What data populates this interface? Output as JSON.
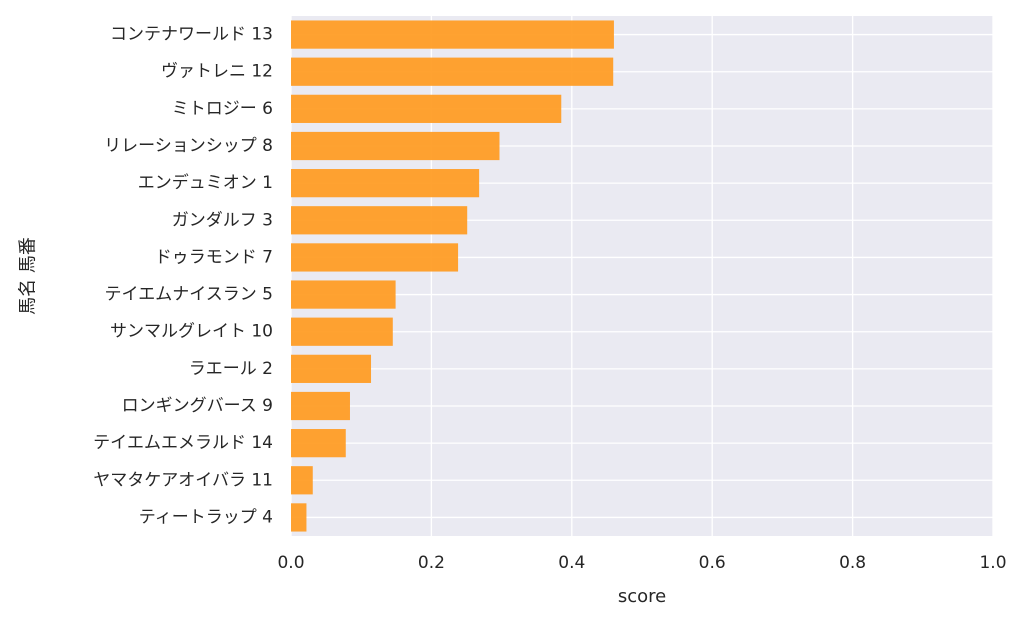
{
  "chart_data": {
    "type": "bar",
    "orientation": "horizontal",
    "xlabel": "score",
    "ylabel": "馬名 馬番",
    "xlim": [
      0.0,
      1.0
    ],
    "xticks": [
      "0.0",
      "0.2",
      "0.4",
      "0.6",
      "0.8",
      "1.0"
    ],
    "grid": true,
    "legend": "none",
    "categories": [
      "コンテナワールド 13",
      "ヴァトレニ 12",
      "ミトロジー 6",
      "リレーションシップ 8",
      "エンデュミオン 1",
      "ガンダルフ 3",
      "ドゥラモンド 7",
      "テイエムナイスラン 5",
      "サンマルグレイト 10",
      "ラエール 2",
      "ロンギングバース 9",
      "テイエムエメラルド 14",
      "ヤマタケアオイバラ 11",
      "ティートラップ 4"
    ],
    "values": [
      0.46,
      0.459,
      0.385,
      0.297,
      0.268,
      0.251,
      0.238,
      0.149,
      0.145,
      0.114,
      0.084,
      0.078,
      0.031,
      0.022
    ],
    "colors": {
      "bar": "#ff9a1f",
      "plot_background": "#eaeaf2",
      "grid": "#ffffff",
      "text": "#262626"
    }
  }
}
